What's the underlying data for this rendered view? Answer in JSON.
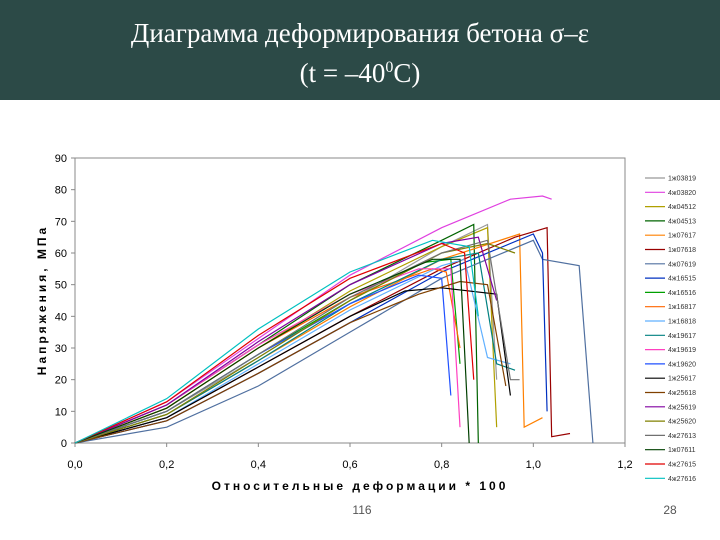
{
  "header": {
    "title_line1": "Диаграмма деформирования бетона σ–ε",
    "title_line2_start": "(t = –40",
    "title_line2_sup": "0",
    "title_line2_end": "С)"
  },
  "chart_data": {
    "type": "line",
    "y_label": "Напряжения, МПа",
    "x_label": "Относительные деформации * 100",
    "xlim": [
      0,
      1.2
    ],
    "ylim": [
      0,
      90
    ],
    "xticks": [
      {
        "value": 0,
        "label": "0,0"
      },
      {
        "value": 0.2,
        "label": "0,2"
      },
      {
        "value": 0.4,
        "label": "0,4"
      },
      {
        "value": 0.6,
        "label": "0,6"
      },
      {
        "value": 0.8,
        "label": "0,8"
      },
      {
        "value": 1.0,
        "label": "1,0"
      },
      {
        "value": 1.2,
        "label": "1,2"
      }
    ],
    "yticks": [
      0,
      10,
      20,
      30,
      40,
      50,
      60,
      70,
      80,
      90
    ],
    "grid": false,
    "legend": "right",
    "series": [
      {
        "name": "1ж03819",
        "color": "#999999",
        "x": [
          0,
          0.2,
          0.4,
          0.6,
          0.8,
          0.9,
          0.92
        ],
        "values": [
          0,
          10,
          27,
          45,
          62,
          69,
          20
        ]
      },
      {
        "name": "4ж03820",
        "color": "#e040e0",
        "x": [
          0,
          0.2,
          0.4,
          0.6,
          0.8,
          0.95,
          1.02,
          1.04
        ],
        "values": [
          0,
          13,
          33,
          53,
          68,
          77,
          78,
          77
        ]
      },
      {
        "name": "4ж04512",
        "color": "#b0a000",
        "x": [
          0,
          0.2,
          0.4,
          0.6,
          0.8,
          0.9,
          0.92
        ],
        "values": [
          0,
          11,
          30,
          48,
          62,
          68,
          5
        ]
      },
      {
        "name": "4ж04513",
        "color": "#006400",
        "x": [
          0,
          0.2,
          0.4,
          0.6,
          0.8,
          0.87,
          0.88
        ],
        "values": [
          0,
          12,
          31,
          50,
          64,
          69,
          0
        ]
      },
      {
        "name": "1ж07617",
        "color": "#ff8000",
        "x": [
          0,
          0.2,
          0.4,
          0.6,
          0.8,
          0.97,
          0.98,
          1.02
        ],
        "values": [
          0,
          9,
          26,
          43,
          58,
          66,
          5,
          8
        ]
      },
      {
        "name": "1ж07618",
        "color": "#990000",
        "x": [
          0,
          0.2,
          0.4,
          0.6,
          0.8,
          0.96,
          1.03,
          1.04,
          1.08
        ],
        "values": [
          0,
          8,
          24,
          40,
          55,
          65,
          68,
          2,
          3
        ]
      },
      {
        "name": "4ж07619",
        "color": "#5070a0",
        "x": [
          0,
          0.2,
          0.4,
          0.6,
          0.8,
          1.0,
          1.02,
          1.1,
          1.13
        ],
        "values": [
          0,
          5,
          18,
          35,
          52,
          64,
          58,
          56,
          0
        ]
      },
      {
        "name": "4ж16515",
        "color": "#0030c0",
        "x": [
          0,
          0.2,
          0.4,
          0.6,
          0.8,
          1.0,
          1.02,
          1.03
        ],
        "values": [
          0,
          7,
          22,
          38,
          54,
          66,
          60,
          10
        ]
      },
      {
        "name": "4ж16516",
        "color": "#00a000",
        "x": [
          0,
          0.2,
          0.4,
          0.6,
          0.76,
          0.82,
          0.84
        ],
        "values": [
          0,
          10,
          28,
          45,
          57,
          58,
          25
        ]
      },
      {
        "name": "1ж16817",
        "color": "#ff6600",
        "x": [
          0,
          0.2,
          0.4,
          0.6,
          0.78,
          0.81,
          0.84
        ],
        "values": [
          0,
          11,
          30,
          46,
          55,
          54,
          30
        ]
      },
      {
        "name": "1ж16818",
        "color": "#60b0ff",
        "x": [
          0,
          0.2,
          0.4,
          0.6,
          0.8,
          0.85,
          0.9,
          0.95
        ],
        "values": [
          0,
          8,
          25,
          42,
          56,
          58,
          27,
          25
        ]
      },
      {
        "name": "4ж19617",
        "color": "#008080",
        "x": [
          0,
          0.2,
          0.4,
          0.6,
          0.8,
          0.88,
          0.92,
          0.96
        ],
        "values": [
          0,
          9,
          26,
          44,
          58,
          60,
          25,
          23
        ]
      },
      {
        "name": "4ж19619",
        "color": "#ff40c0",
        "x": [
          0,
          0.2,
          0.4,
          0.6,
          0.75,
          0.82,
          0.84
        ],
        "values": [
          0,
          12,
          31,
          47,
          55,
          55,
          5
        ]
      },
      {
        "name": "4ж19620",
        "color": "#2050ff",
        "x": [
          0,
          0.2,
          0.4,
          0.6,
          0.75,
          0.8,
          0.82
        ],
        "values": [
          0,
          10,
          28,
          44,
          53,
          52,
          15
        ]
      },
      {
        "name": "1ж25617",
        "color": "#000000",
        "x": [
          0,
          0.2,
          0.4,
          0.6,
          0.72,
          0.8,
          0.92,
          0.95
        ],
        "values": [
          0,
          8,
          24,
          40,
          48,
          49,
          47,
          15
        ]
      },
      {
        "name": "4ж25618",
        "color": "#804000",
        "x": [
          0,
          0.2,
          0.4,
          0.6,
          0.75,
          0.84,
          0.9,
          0.94
        ],
        "values": [
          0,
          7,
          22,
          38,
          47,
          51,
          50,
          18
        ]
      },
      {
        "name": "4ж25619",
        "color": "#8000a0",
        "x": [
          0,
          0.2,
          0.4,
          0.6,
          0.8,
          0.88,
          0.92
        ],
        "values": [
          0,
          12,
          32,
          50,
          63,
          65,
          45
        ]
      },
      {
        "name": "4ж25620",
        "color": "#808000",
        "x": [
          0,
          0.2,
          0.4,
          0.6,
          0.8,
          0.9,
          0.96
        ],
        "values": [
          0,
          9,
          27,
          45,
          60,
          63,
          60
        ]
      },
      {
        "name": "4ж27613",
        "color": "#707070",
        "x": [
          0,
          0.2,
          0.4,
          0.6,
          0.8,
          0.9,
          0.95,
          0.97
        ],
        "values": [
          0,
          10,
          28,
          46,
          60,
          64,
          20,
          20
        ]
      },
      {
        "name": "1ж07611",
        "color": "#004000",
        "x": [
          0,
          0.2,
          0.4,
          0.6,
          0.78,
          0.84,
          0.86
        ],
        "values": [
          0,
          11,
          30,
          47,
          58,
          58,
          0
        ]
      },
      {
        "name": "4ж27615",
        "color": "#e00000",
        "x": [
          0,
          0.2,
          0.4,
          0.6,
          0.8,
          0.85,
          0.87
        ],
        "values": [
          0,
          13,
          34,
          52,
          63,
          60,
          20
        ]
      },
      {
        "name": "4ж27616",
        "color": "#00c0c0",
        "x": [
          0,
          0.2,
          0.4,
          0.6,
          0.78,
          0.86,
          0.88
        ],
        "values": [
          0,
          14,
          36,
          54,
          64,
          62,
          40
        ]
      }
    ]
  },
  "footer": {
    "left": "116",
    "right": "28"
  }
}
